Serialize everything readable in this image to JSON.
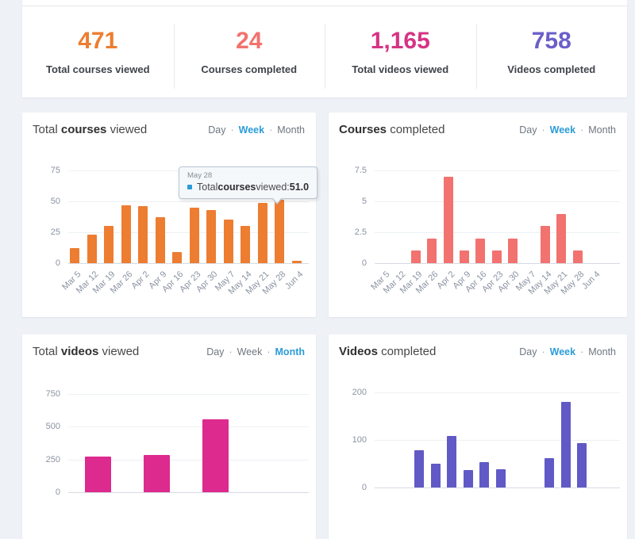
{
  "stats": {
    "items": [
      {
        "value": "471",
        "label": "Total courses viewed",
        "color": "#ed7d31"
      },
      {
        "value": "24",
        "label": "Courses completed",
        "color": "#f2726f"
      },
      {
        "value": "1,165",
        "label": "Total videos viewed",
        "color": "#d63384"
      },
      {
        "value": "758",
        "label": "Videos completed",
        "color": "#6a5fc9"
      }
    ]
  },
  "period_toggle": {
    "options": [
      "Day",
      "Week",
      "Month"
    ],
    "separator": "·",
    "active_color": "#2b9cd8"
  },
  "charts": [
    {
      "name": "total-courses-viewed",
      "title_parts": {
        "prefix": "Total ",
        "bold": "courses",
        "suffix": " viewed"
      },
      "active_period": "Week",
      "color": "#ed7d31",
      "chart_data": {
        "type": "bar",
        "categories": [
          "Mar 5",
          "Mar 12",
          "Mar 19",
          "Mar 26",
          "Apr 2",
          "Apr 9",
          "Apr 16",
          "Apr 23",
          "Apr 30",
          "May 7",
          "May 14",
          "May 21",
          "May 28",
          "Jun 4"
        ],
        "values": [
          12,
          23,
          30,
          47,
          46,
          37,
          9,
          45,
          43,
          35,
          30,
          49,
          51,
          2
        ],
        "yticks": [
          0,
          25,
          50,
          75
        ],
        "ymax": 75,
        "xlabels_visible": true
      },
      "tooltip": {
        "date": "May 28",
        "label_prefix": "Total ",
        "label_bold": "courses",
        "label_suffix": " viewed: ",
        "value": "51.0",
        "marker_color": "#2b9cd8"
      }
    },
    {
      "name": "courses-completed",
      "title_parts": {
        "prefix": "",
        "bold": "Courses",
        "suffix": " completed"
      },
      "active_period": "Week",
      "color": "#f2726f",
      "chart_data": {
        "type": "bar",
        "categories": [
          "Mar 5",
          "Mar 12",
          "Mar 19",
          "Mar 26",
          "Apr 2",
          "Apr 9",
          "Apr 16",
          "Apr 23",
          "Apr 30",
          "May 7",
          "May 14",
          "May 21",
          "May 28",
          "Jun 4"
        ],
        "values": [
          0,
          0,
          1,
          2,
          7,
          1,
          2,
          1,
          2,
          0,
          3,
          4,
          1,
          0
        ],
        "yticks": [
          0,
          2.5,
          5,
          7.5
        ],
        "ymax": 7.5,
        "xlabels_visible": true
      }
    },
    {
      "name": "total-videos-viewed",
      "title_parts": {
        "prefix": "Total ",
        "bold": "videos",
        "suffix": " viewed"
      },
      "active_period": "Month",
      "color": "#dd2a8e",
      "chart_data": {
        "type": "bar",
        "categories": [],
        "values": [
          270,
          285,
          555,
          0
        ],
        "yticks": [
          0,
          250,
          500,
          750
        ],
        "ymax": 750,
        "xlabels_visible": false
      }
    },
    {
      "name": "videos-completed",
      "title_parts": {
        "prefix": "",
        "bold": "Videos",
        "suffix": " completed"
      },
      "active_period": "Week",
      "color": "#6159c6",
      "chart_data": {
        "type": "bar",
        "categories": [],
        "values": [
          0,
          0,
          78,
          50,
          108,
          36,
          53,
          38,
          0,
          0,
          61,
          180,
          93,
          0
        ],
        "yticks": [
          0,
          100,
          200
        ],
        "ymax": 200,
        "xlabels_visible": false
      }
    }
  ]
}
